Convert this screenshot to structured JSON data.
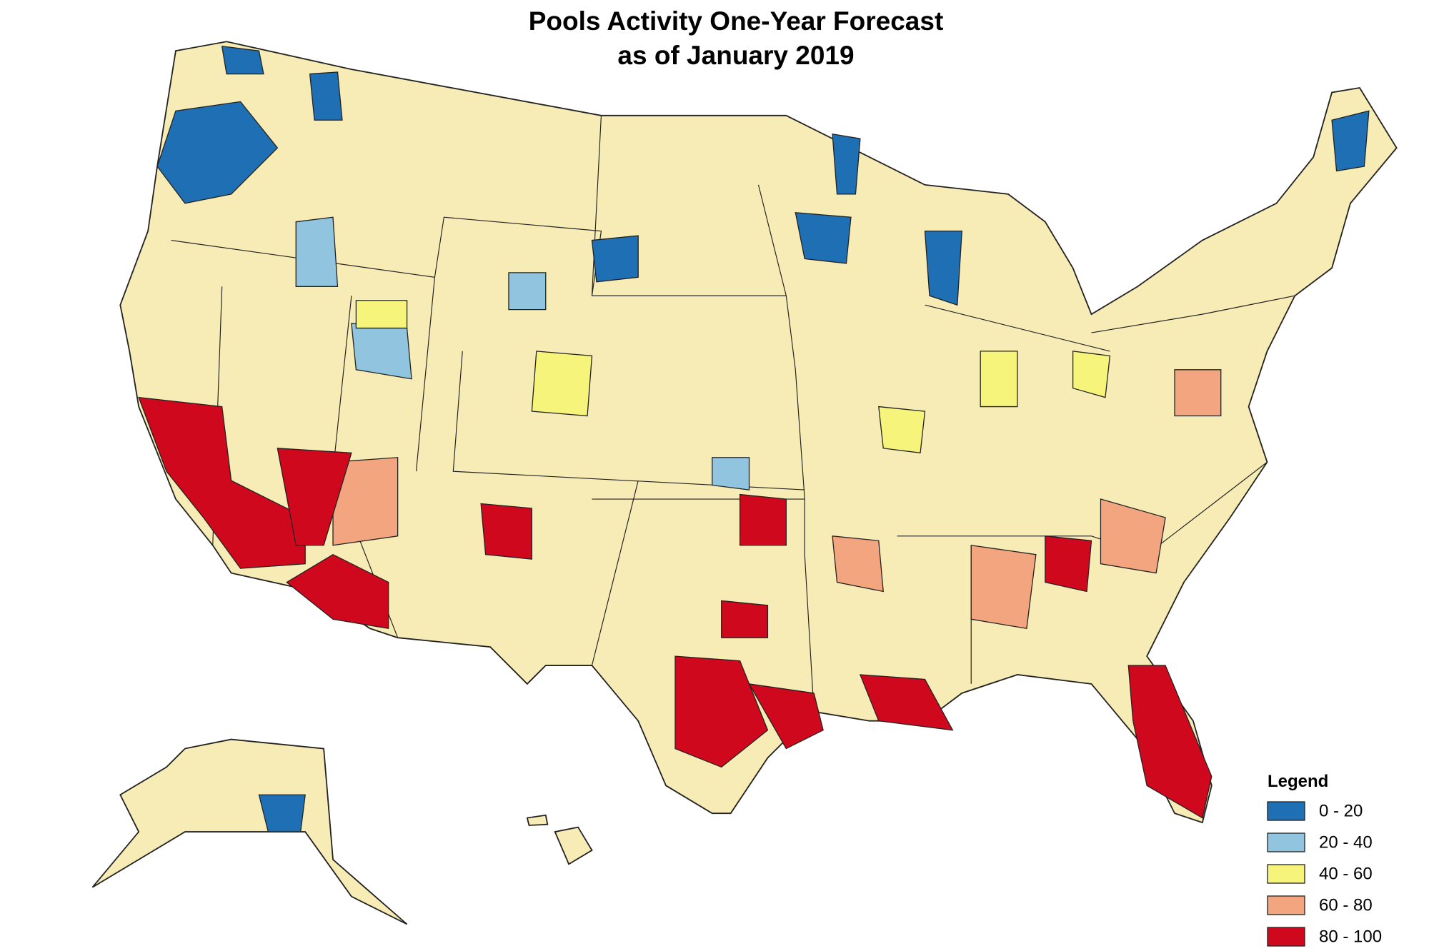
{
  "header": {
    "title_lines": [
      "Pools Activity One-Year Forecast",
      "as of January 2019"
    ]
  },
  "legend": {
    "title": "Legend",
    "items": [
      {
        "label": "0 - 20",
        "color": "#1f6fb4"
      },
      {
        "label": "20 - 40",
        "color": "#90c4df"
      },
      {
        "label": "40 - 60",
        "color": "#f7f47c"
      },
      {
        "label": "60 - 80",
        "color": "#f2a57f"
      },
      {
        "label": "80 - 100",
        "color": "#d0081d"
      }
    ]
  }
}
